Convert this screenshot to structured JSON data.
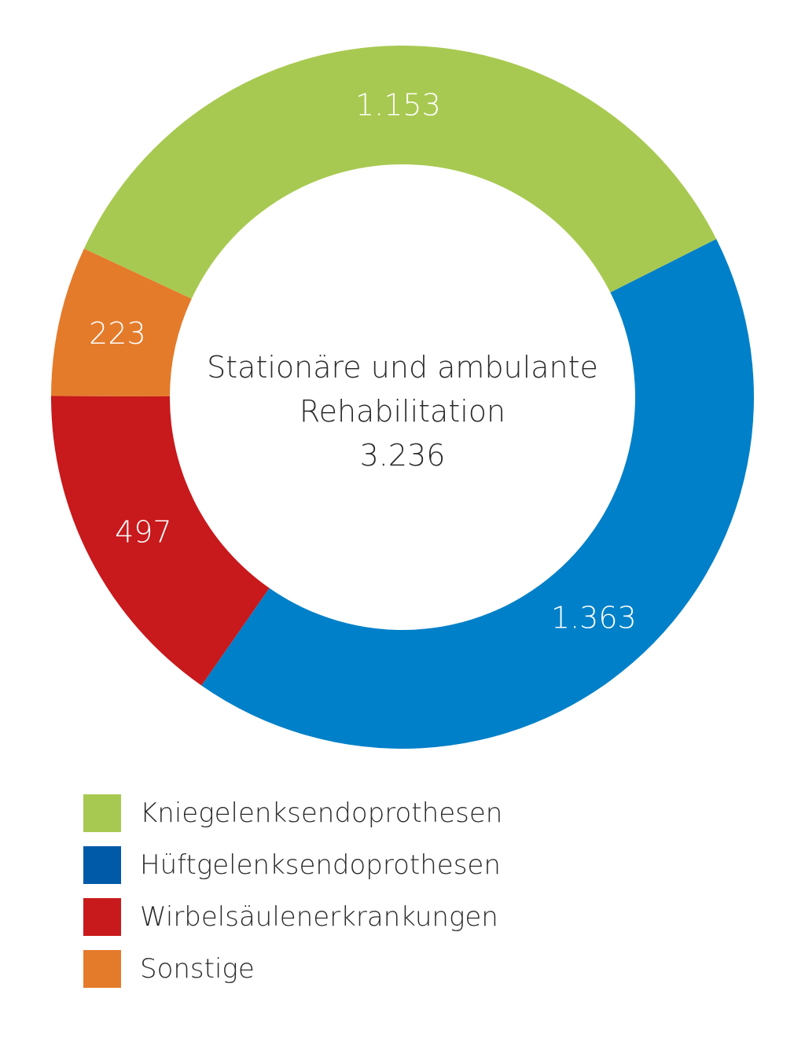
{
  "chart_data": {
    "type": "pie",
    "donut": true,
    "center_label": {
      "line1": "Stationäre und ambulante",
      "line2": "Rehabilitation",
      "total": "3.236"
    },
    "slices": [
      {
        "name": "Kniegelenksendoprothesen",
        "value": 1153,
        "label": "1.153",
        "color": "#a8c951"
      },
      {
        "name": "Hüftgelenksendoprothesen",
        "value": 1363,
        "label": "1.363",
        "color": "#0080c8"
      },
      {
        "name": "Wirbelsäulenerkrankungen",
        "value": 497,
        "label": "497",
        "color": "#c8191c"
      },
      {
        "name": "Sonstige",
        "value": 223,
        "label": "223",
        "color": "#e47b2b"
      }
    ],
    "legend": {
      "placement": "bottom-left",
      "items": [
        {
          "label": "Kniegelenksendoprothesen",
          "color": "#a8c951"
        },
        {
          "label": "Hüftgelenksendoprothesen",
          "color": "#005aa8"
        },
        {
          "label": "Wirbelsäulenerkrankungen",
          "color": "#c8191c"
        },
        {
          "label": "Sonstige",
          "color": "#e47b2b"
        }
      ]
    }
  }
}
